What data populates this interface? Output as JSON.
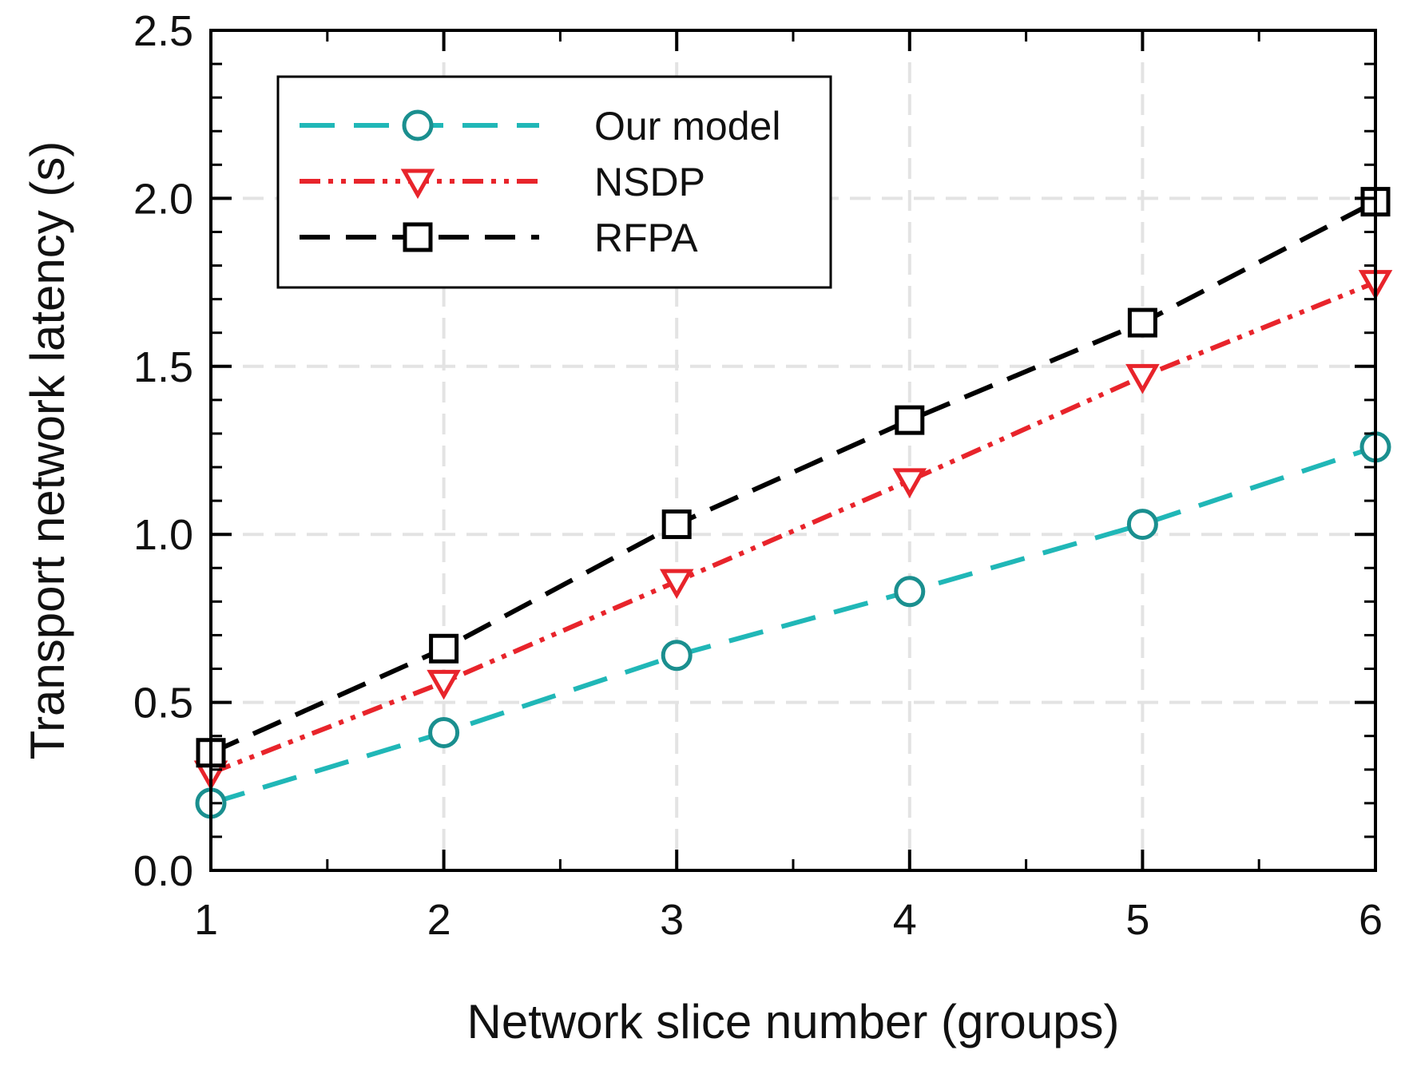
{
  "chart_data": {
    "type": "line",
    "title": "",
    "xlabel": "Network slice number (groups)",
    "ylabel": "Transport network latency (s)",
    "x": [
      1,
      2,
      3,
      4,
      5,
      6
    ],
    "xlim": [
      1,
      6
    ],
    "ylim": [
      0,
      2.5
    ],
    "xticks": [
      "1",
      "2",
      "3",
      "4",
      "5",
      "6"
    ],
    "yticks": [
      "0.0",
      "0.5",
      "1.0",
      "1.5",
      "2.0",
      "2.5"
    ],
    "grid": true,
    "legend_position": "top-left",
    "series": [
      {
        "name": "Our model",
        "values": [
          0.2,
          0.41,
          0.64,
          0.83,
          1.03,
          1.26
        ],
        "color": "#20b7b7",
        "marker": "circle",
        "dash": "long-dash"
      },
      {
        "name": "NSDP",
        "values": [
          0.29,
          0.56,
          0.86,
          1.16,
          1.47,
          1.75
        ],
        "color": "#e8242b",
        "marker": "triangle-down",
        "dash": "dash-dot-dot"
      },
      {
        "name": "RFPA",
        "values": [
          0.35,
          0.66,
          1.03,
          1.34,
          1.63,
          1.99
        ],
        "color": "#000000",
        "marker": "square",
        "dash": "dash"
      }
    ]
  }
}
